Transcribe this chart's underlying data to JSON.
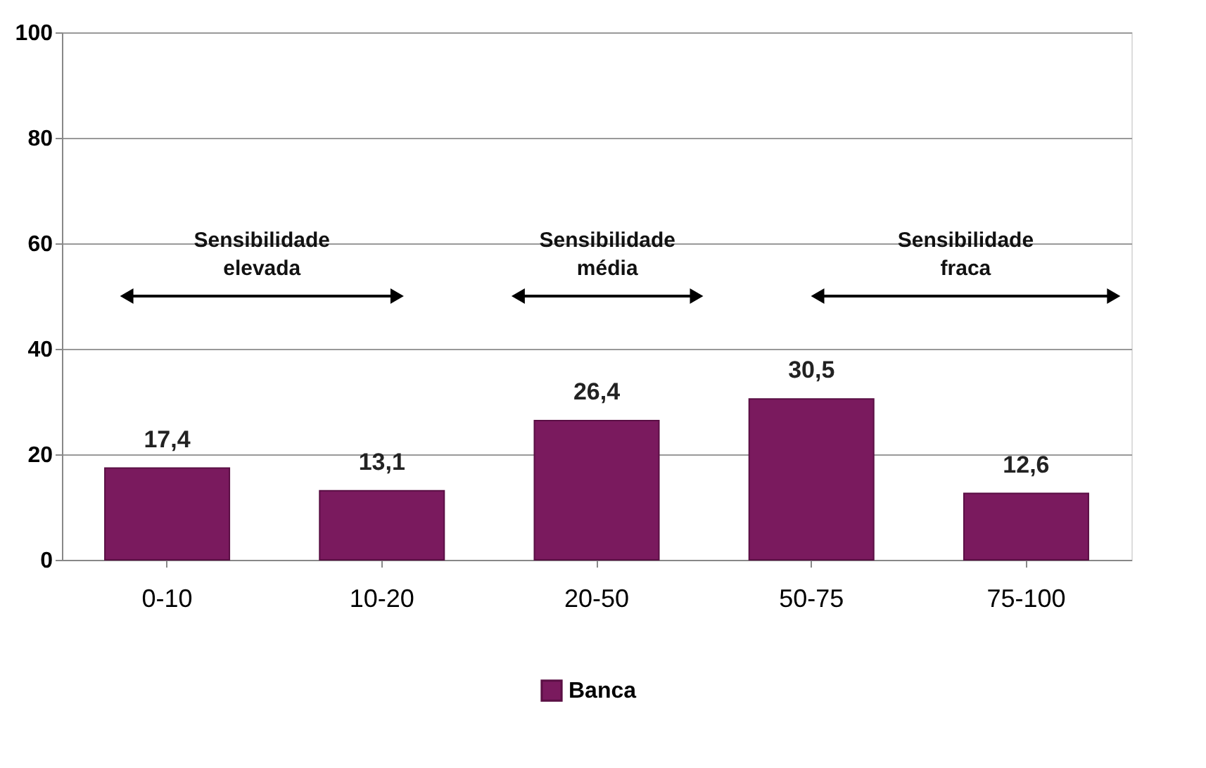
{
  "chart_data": {
    "type": "bar",
    "categories": [
      "0-10",
      "10-20",
      "20-50",
      "50-75",
      "75-100"
    ],
    "series": [
      {
        "name": "Banca",
        "color": "#7a1a5e",
        "values": [
          17.4,
          13.1,
          26.4,
          30.5,
          12.6
        ]
      }
    ],
    "value_labels": [
      "17,4",
      "13,1",
      "26,4",
      "30,5",
      "12,6"
    ],
    "ylim": [
      0,
      100
    ],
    "yticks": [
      0,
      20,
      40,
      60,
      80,
      100
    ],
    "grid": "y",
    "legend": "bottom",
    "annotations": [
      "Sensibilidade\nelevada",
      "Sensibilidade\nmédia",
      "Sensibilidade\nfraca"
    ]
  }
}
